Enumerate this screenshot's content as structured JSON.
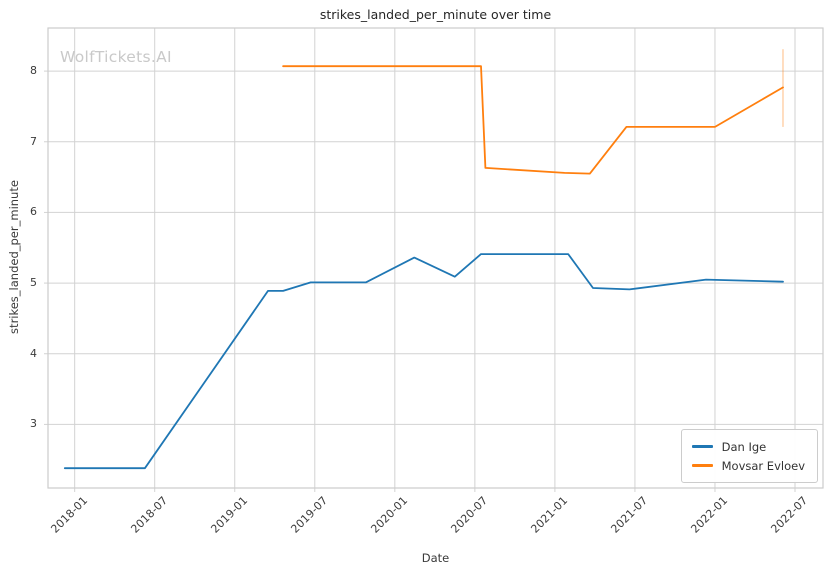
{
  "page": {
    "title": "strikes_landed_per_minute over time",
    "watermark": "WolfTickets.AI",
    "xlabel": "Date",
    "ylabel": "strikes_landed_per_minute"
  },
  "colors": {
    "dan_ige": "#1f77b4",
    "movsar_evloev": "#ff7f0e",
    "grid": "#d2d2d2",
    "spine": "#cccccc",
    "text": "#3b3b3b",
    "watermark": "#c9c9c9"
  },
  "chart_data": {
    "type": "line",
    "title": "strikes_landed_per_minute over time",
    "xlabel": "Date",
    "ylabel": "strikes_landed_per_minute",
    "grid": true,
    "legend_position": "lower right",
    "xlim": [
      "2017-11-01",
      "2022-09-04"
    ],
    "ylim": [
      2.1,
      8.61
    ],
    "x_tick_labels": [
      "2018-01",
      "2018-07",
      "2019-01",
      "2019-07",
      "2020-01",
      "2020-07",
      "2021-01",
      "2021-07",
      "2022-01",
      "2022-07"
    ],
    "y_ticks": [
      3,
      4,
      5,
      6,
      7,
      8
    ],
    "series": [
      {
        "name": "Dan Ige",
        "color": "#1f77b4",
        "points": [
          [
            "2017-12-09",
            2.38
          ],
          [
            "2018-06-09",
            2.38
          ],
          [
            "2019-03-16",
            4.89
          ],
          [
            "2019-04-20",
            4.89
          ],
          [
            "2019-06-22",
            5.01
          ],
          [
            "2019-10-26",
            5.01
          ],
          [
            "2020-02-15",
            5.36
          ],
          [
            "2020-05-16",
            5.09
          ],
          [
            "2020-07-15",
            5.41
          ],
          [
            "2021-02-01",
            5.41
          ],
          [
            "2021-03-27",
            4.93
          ],
          [
            "2021-06-19",
            4.91
          ],
          [
            "2021-12-11",
            5.05
          ],
          [
            "2022-06-04",
            5.02
          ]
        ]
      },
      {
        "name": "Movsar Evloev",
        "color": "#ff7f0e",
        "points": [
          [
            "2019-04-20",
            8.07
          ],
          [
            "2020-07-15",
            8.07
          ],
          [
            "2020-07-25",
            6.63
          ],
          [
            "2021-01-23",
            6.56
          ],
          [
            "2021-03-20",
            6.55
          ],
          [
            "2021-06-12",
            7.21
          ],
          [
            "2022-01-01",
            7.21
          ],
          [
            "2022-06-04",
            7.77
          ]
        ],
        "error_bar": {
          "x": "2022-06-04",
          "low": 7.21,
          "high": 8.31
        }
      }
    ]
  }
}
